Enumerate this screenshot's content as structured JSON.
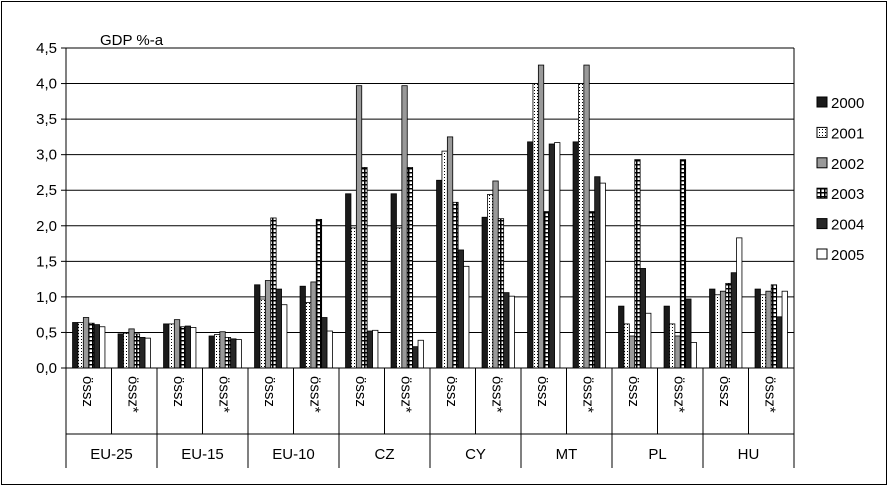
{
  "chart_data": {
    "type": "bar",
    "title": "",
    "ylabel": "GDP %-a",
    "xlabel": "",
    "ylim": [
      0,
      4.5
    ],
    "ytick_step": 0.5,
    "yticks": [
      "0,0",
      "0,5",
      "1,0",
      "1,5",
      "2,0",
      "2,5",
      "3,0",
      "3,5",
      "4,0",
      "4,5"
    ],
    "grid": true,
    "legend_position": "right",
    "groups": [
      "EU-25",
      "EU-15",
      "EU-10",
      "CZ",
      "CY",
      "MT",
      "PL",
      "HU"
    ],
    "subcategories": [
      "össz",
      "össz*"
    ],
    "categories": [
      "EU-25 össz",
      "EU-25 össz*",
      "EU-15 össz",
      "EU-15 össz*",
      "EU-10 össz",
      "EU-10 össz*",
      "CZ össz",
      "CZ össz*",
      "CY össz",
      "CY össz*",
      "MT össz",
      "MT össz*",
      "PL össz",
      "PL össz*",
      "HU össz",
      "HU össz*"
    ],
    "series": [
      {
        "name": "2000",
        "color": "#1a1a1a",
        "pattern": "solid-dark",
        "values": [
          0.64,
          0.48,
          0.62,
          0.45,
          1.17,
          1.15,
          2.45,
          2.45,
          2.64,
          2.12,
          3.18,
          3.18,
          0.87,
          0.87,
          1.11,
          1.11
        ]
      },
      {
        "name": "2001",
        "color": "#ffffff",
        "pattern": "dotted",
        "values": [
          0.64,
          0.49,
          0.62,
          0.47,
          0.97,
          0.92,
          1.97,
          1.97,
          3.05,
          2.44,
          4.0,
          4.0,
          0.62,
          0.62,
          1.03,
          1.03
        ]
      },
      {
        "name": "2002",
        "color": "#999999",
        "pattern": "solid-gray",
        "values": [
          0.71,
          0.55,
          0.68,
          0.51,
          1.23,
          1.21,
          3.97,
          3.97,
          3.25,
          2.63,
          4.26,
          4.26,
          0.45,
          0.45,
          1.08,
          1.08
        ]
      },
      {
        "name": "2003",
        "color": "#ffffff",
        "pattern": "hatched",
        "values": [
          0.63,
          0.48,
          0.58,
          0.43,
          2.11,
          2.09,
          2.82,
          2.82,
          2.33,
          2.1,
          2.2,
          2.2,
          2.93,
          2.93,
          1.19,
          1.17
        ]
      },
      {
        "name": "2004",
        "color": "#262626",
        "pattern": "solid-dark",
        "values": [
          0.61,
          0.43,
          0.59,
          0.41,
          1.11,
          0.71,
          0.52,
          0.3,
          1.66,
          1.06,
          3.15,
          2.69,
          1.4,
          0.97,
          1.34,
          0.72
        ]
      },
      {
        "name": "2005",
        "color": "#ffffff",
        "pattern": "plain",
        "values": [
          0.58,
          0.42,
          0.57,
          0.4,
          0.89,
          0.52,
          0.53,
          0.39,
          1.43,
          1.01,
          3.17,
          2.6,
          0.77,
          0.36,
          1.83,
          1.08
        ]
      }
    ]
  }
}
